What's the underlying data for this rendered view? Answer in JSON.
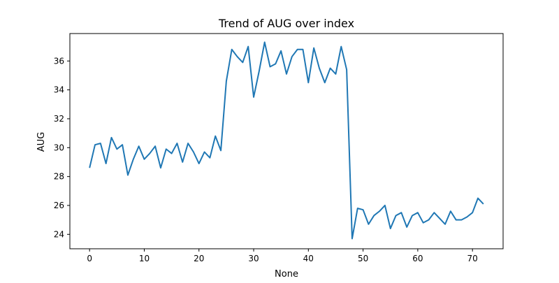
{
  "chart_data": {
    "type": "line",
    "title": "Trend of AUG over index",
    "xlabel": "None",
    "ylabel": "AUG",
    "xlim": [
      -3.6,
      75.6
    ],
    "ylim": [
      23.0,
      37.9
    ],
    "xticks": [
      0,
      10,
      20,
      30,
      40,
      50,
      60,
      70
    ],
    "yticks": [
      24,
      26,
      28,
      30,
      32,
      34,
      36
    ],
    "grid": false,
    "series": [
      {
        "color": "#1f77b4",
        "x": [
          0,
          1,
          2,
          3,
          4,
          5,
          6,
          7,
          8,
          9,
          10,
          11,
          12,
          13,
          14,
          15,
          16,
          17,
          18,
          19,
          20,
          21,
          22,
          23,
          24,
          25,
          26,
          27,
          28,
          29,
          30,
          31,
          32,
          33,
          34,
          35,
          36,
          37,
          38,
          39,
          40,
          41,
          42,
          43,
          44,
          45,
          46,
          47,
          48,
          49,
          50,
          51,
          52,
          53,
          54,
          55,
          56,
          57,
          58,
          59,
          60,
          61,
          62,
          63,
          64,
          65,
          66,
          67,
          68,
          69,
          70,
          71,
          72
        ],
        "values": [
          28.6,
          30.2,
          30.3,
          28.9,
          30.7,
          29.9,
          30.2,
          28.1,
          29.2,
          30.1,
          29.2,
          29.6,
          30.1,
          28.6,
          29.9,
          29.6,
          30.3,
          29.0,
          30.3,
          29.7,
          28.9,
          29.7,
          29.3,
          30.8,
          29.8,
          34.6,
          36.8,
          36.3,
          35.9,
          37.0,
          33.5,
          35.3,
          37.3,
          35.6,
          35.8,
          36.7,
          35.1,
          36.3,
          36.8,
          36.8,
          34.5,
          36.9,
          35.5,
          34.5,
          35.5,
          35.1,
          37.0,
          35.4,
          23.7,
          25.8,
          25.7,
          24.7,
          25.3,
          25.6,
          26.0,
          24.4,
          25.3,
          25.5,
          24.5,
          25.3,
          25.5,
          24.8,
          25.0,
          25.5,
          25.1,
          24.7,
          25.6,
          25.0,
          25.0,
          25.2,
          25.5,
          26.5,
          26.1
        ]
      }
    ]
  }
}
